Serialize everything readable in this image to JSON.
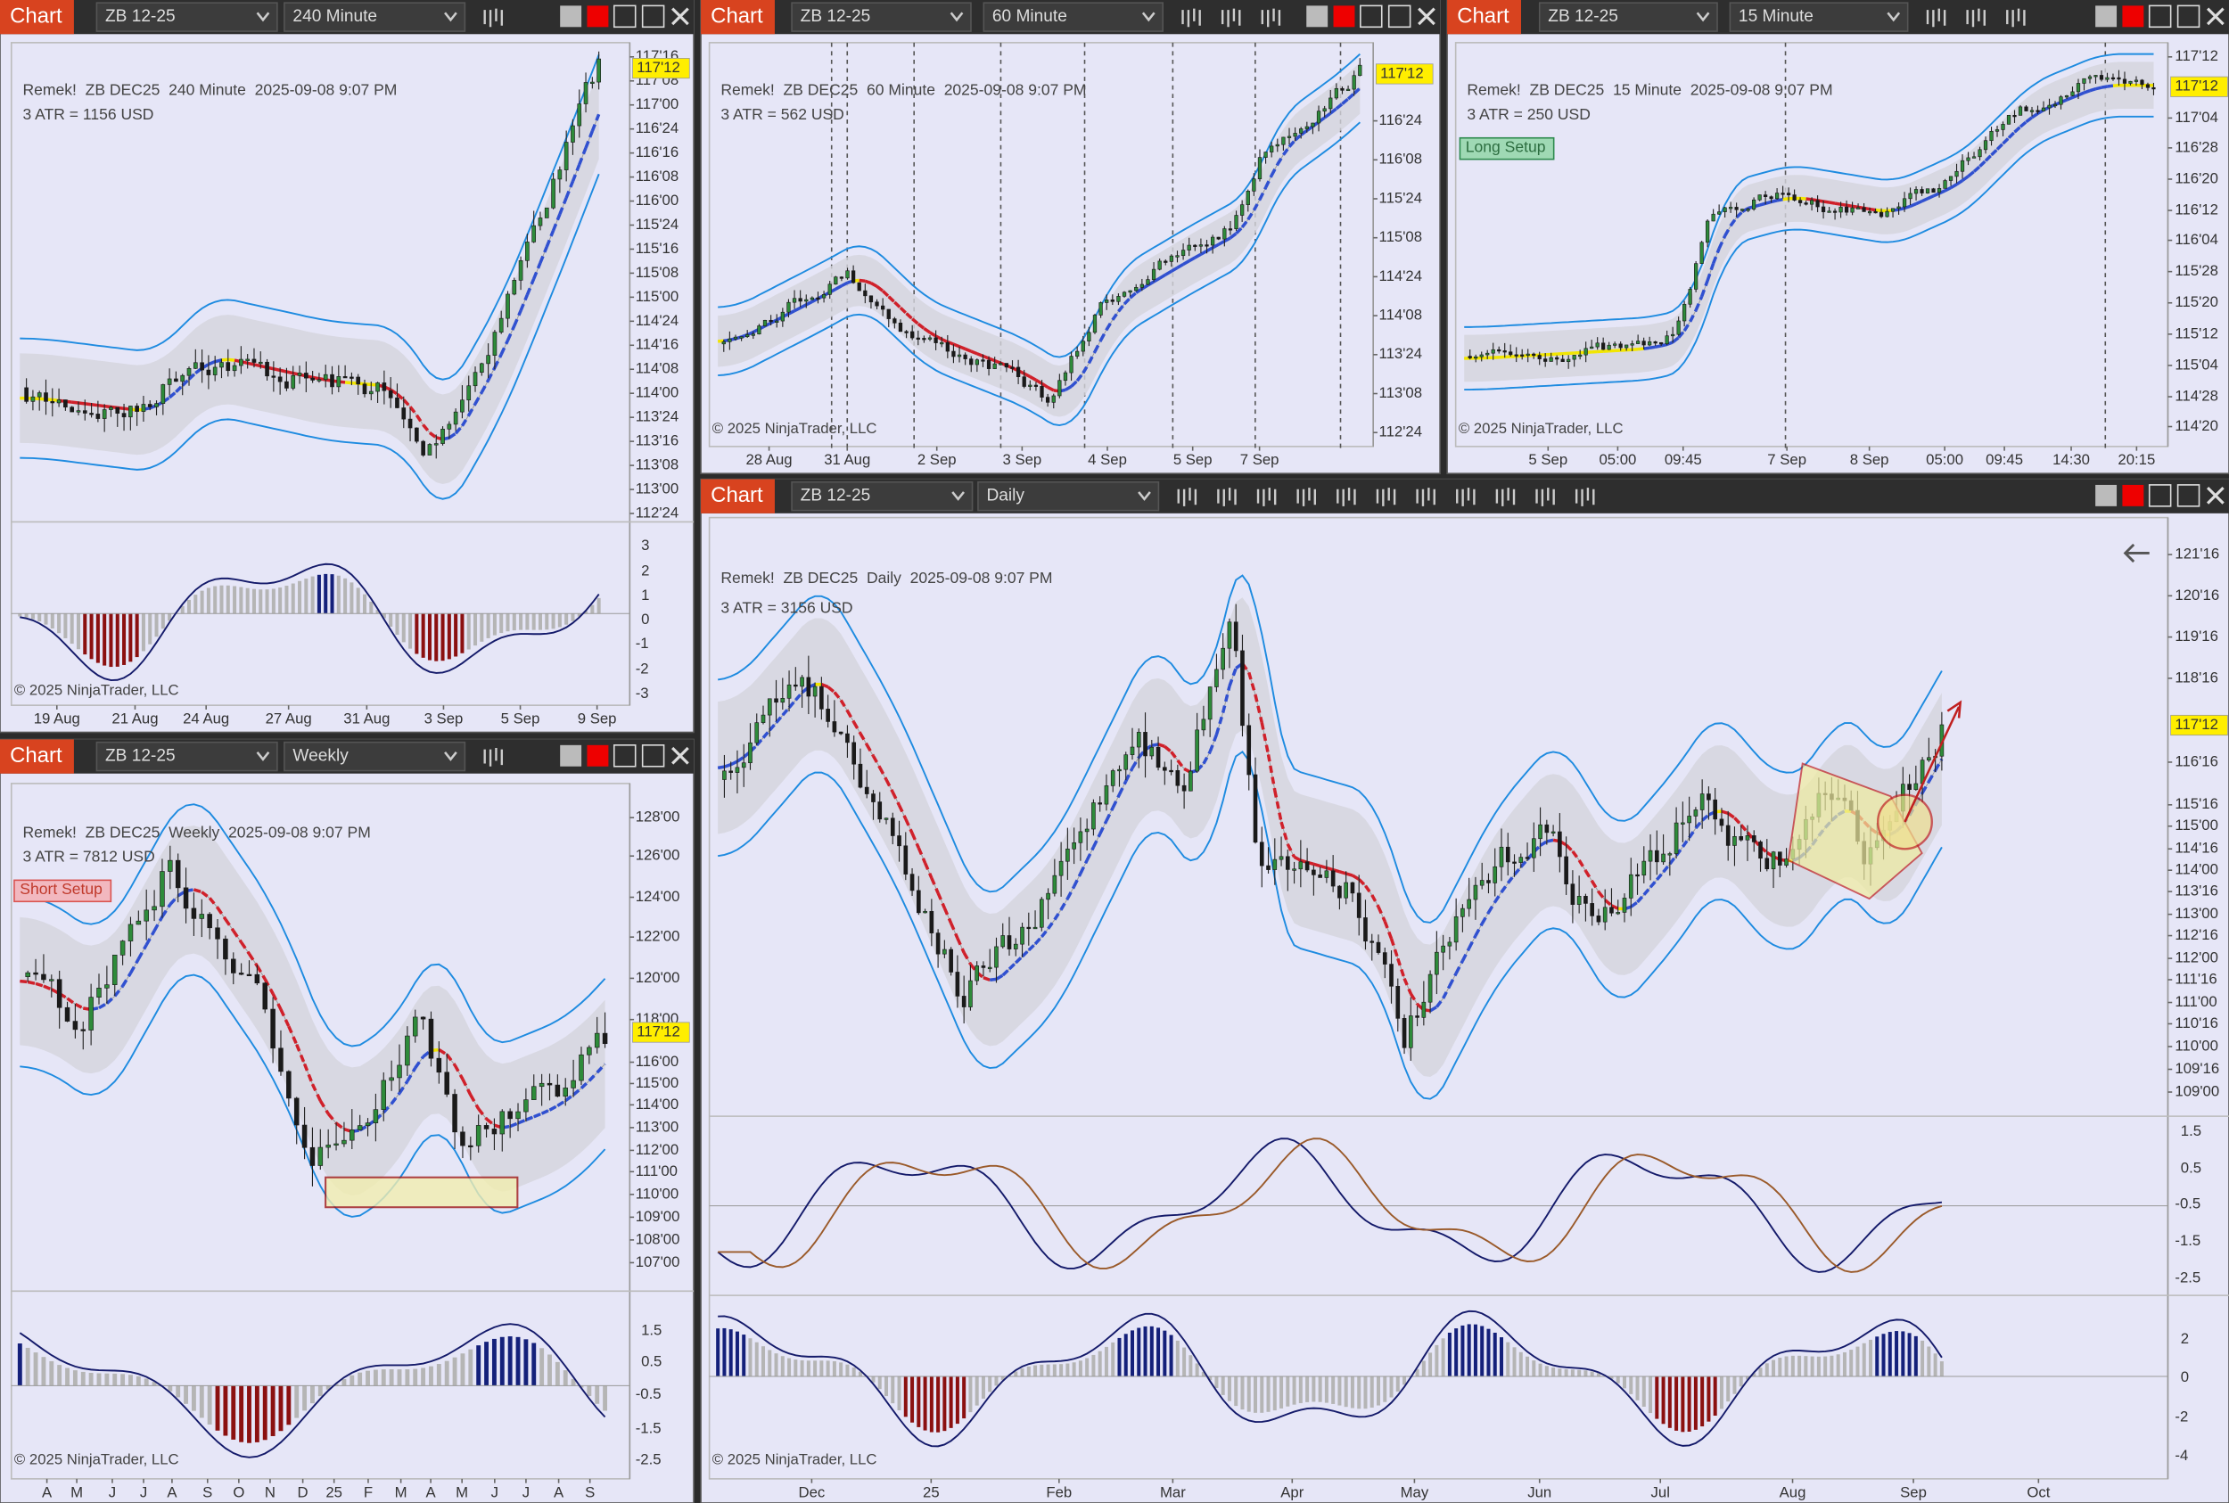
{
  "windows": [
    {
      "tab": "Chart",
      "instrument": "ZB 12-25",
      "interval": "240 Minute",
      "header": "Remek!  ZB DEC25  240 Minute  2025-09-08 9:07 PM",
      "atr": "3 ATR = 1156 USD",
      "last_price": "117'12",
      "price_axis": [
        "117'16",
        "117'08",
        "117'00",
        "116'24",
        "116'16",
        "116'08",
        "116'00",
        "115'24",
        "115'16",
        "115'08",
        "115'00",
        "114'24",
        "114'16",
        "114'08",
        "114'00",
        "113'24",
        "113'16",
        "113'08",
        "113'00",
        "112'24"
      ],
      "indicator_axes": [
        [
          3,
          2,
          1,
          0,
          -1,
          -2,
          -3
        ]
      ],
      "date_axis": [
        "19 Aug",
        "21 Aug",
        "24 Aug",
        "27 Aug",
        "31 Aug",
        "3 Sep",
        "5 Sep",
        "9 Sep"
      ],
      "copyright": "© 2025 NinjaTrader, LLC"
    },
    {
      "tab": "Chart",
      "instrument": "ZB 12-25",
      "interval": "60 Minute",
      "header": "Remek!  ZB DEC25  60 Minute  2025-09-08 9:07 PM",
      "atr": "3 ATR = 562 USD",
      "last_price": "117'12",
      "price_axis": [
        "116'24",
        "116'08",
        "115'24",
        "115'08",
        "114'24",
        "114'08",
        "113'24",
        "113'08",
        "112'24"
      ],
      "date_axis": [
        "28 Aug",
        "31 Aug",
        "2 Sep",
        "3 Sep",
        "4 Sep",
        "5 Sep",
        "7 Sep"
      ],
      "copyright": "© 2025 NinjaTrader, LLC"
    },
    {
      "tab": "Chart",
      "instrument": "ZB 12-25",
      "interval": "15 Minute",
      "header": "Remek!  ZB DEC25  15 Minute  2025-09-08 9:07 PM",
      "atr": "3 ATR = 250 USD",
      "last_price": "117'12",
      "setup_label": "Long Setup",
      "price_axis": [
        "117'12",
        "117'04",
        "116'28",
        "116'20",
        "116'12",
        "116'04",
        "115'28",
        "115'20",
        "115'12",
        "115'04",
        "114'28",
        "114'20"
      ],
      "date_axis": [
        "5 Sep",
        "05:00",
        "09:45",
        "7 Sep",
        "8 Sep",
        "05:00",
        "09:45",
        "14:30",
        "20:15"
      ],
      "copyright": "© 2025 NinjaTrader, LLC"
    },
    {
      "tab": "Chart",
      "instrument": "ZB 12-25",
      "interval": "Weekly",
      "header": "Remek!  ZB DEC25  Weekly  2025-09-08 9:07 PM",
      "atr": "3 ATR = 7812 USD",
      "last_price": "117'12",
      "setup_label": "Short Setup",
      "price_axis": [
        "128'00",
        "126'00",
        "124'00",
        "122'00",
        "120'00",
        "118'00",
        "116'00",
        "115'00",
        "114'00",
        "113'00",
        "112'00",
        "111'00",
        "110'00",
        "109'00",
        "108'00",
        "107'00"
      ],
      "indicator_axes": [
        [
          1.5,
          0.5,
          -0.5,
          -1.5,
          -2.5
        ]
      ],
      "date_axis": [
        "A",
        "M",
        "J",
        "J",
        "A",
        "S",
        "O",
        "N",
        "D",
        "25",
        "F",
        "M",
        "A",
        "M",
        "J",
        "J",
        "A",
        "S"
      ],
      "copyright": "© 2025 NinjaTrader, LLC"
    },
    {
      "tab": "Chart",
      "instrument": "ZB 12-25",
      "interval": "Daily",
      "header": "Remek!  ZB DEC25  Daily  2025-09-08 9:07 PM",
      "atr": "3 ATR = 3156 USD",
      "last_price": "117'12",
      "price_axis": [
        "121'16",
        "120'16",
        "119'16",
        "118'16",
        "116'16",
        "115'16",
        "115'00",
        "114'16",
        "114'00",
        "113'16",
        "113'00",
        "112'16",
        "112'00",
        "111'16",
        "111'00",
        "110'16",
        "110'00",
        "109'16",
        "109'00"
      ],
      "indicator_axes": [
        [
          1.5,
          0.5,
          -0.5,
          -1.5,
          -2.5
        ],
        [
          2,
          0,
          -2,
          -4
        ]
      ],
      "date_axis": [
        "Dec",
        "25",
        "Feb",
        "Mar",
        "Apr",
        "May",
        "Jun",
        "Jul",
        "Aug",
        "Sep",
        "Oct"
      ],
      "copyright": "© 2025 NinjaTrader, LLC"
    }
  ]
}
